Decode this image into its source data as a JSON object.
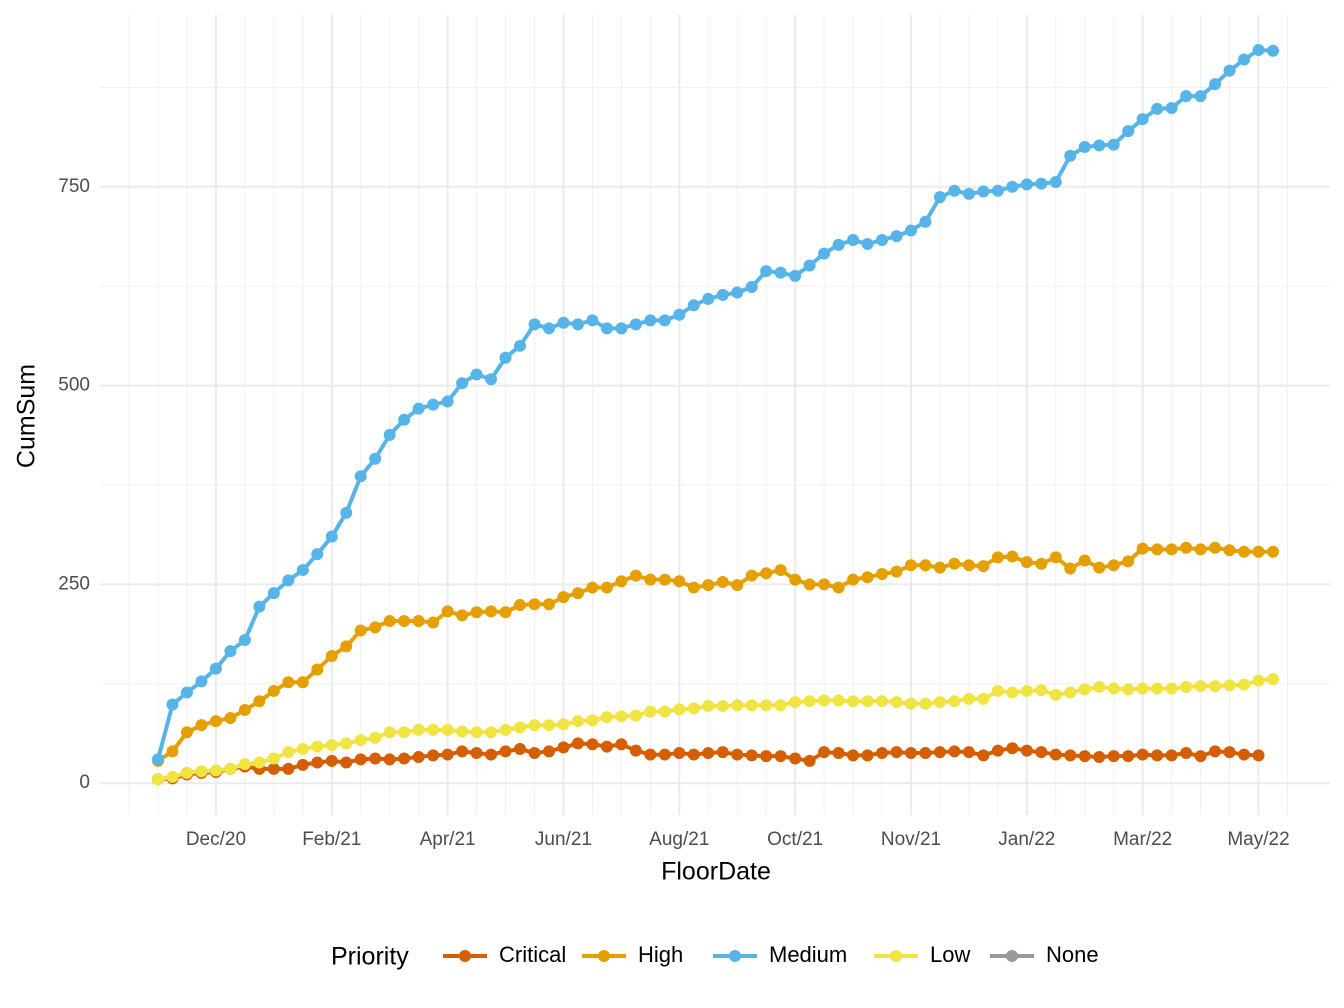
{
  "chart_data": {
    "type": "line",
    "x_label": "FloorDate",
    "y_label": "CumSum",
    "legend_title": "Priority",
    "legend_position": "bottom",
    "grid": true,
    "categories": [
      null,
      null,
      null,
      null,
      "Dec/20",
      null,
      null,
      null,
      null,
      null,
      null,
      null,
      "Feb/21",
      null,
      null,
      null,
      null,
      null,
      null,
      null,
      "Apr/21",
      null,
      null,
      null,
      null,
      null,
      null,
      null,
      "Jun/21",
      null,
      null,
      null,
      null,
      null,
      null,
      null,
      "Aug/21",
      null,
      null,
      null,
      null,
      null,
      null,
      null,
      "Oct/21",
      null,
      null,
      null,
      null,
      null,
      null,
      null,
      "Nov/21",
      null,
      null,
      null,
      null,
      null,
      null,
      null,
      "Jan/22",
      null,
      null,
      null,
      null,
      null,
      null,
      null,
      "Mar/22",
      null,
      null,
      null,
      null,
      null,
      null,
      null,
      "May/22",
      null
    ],
    "ylim": [
      -40,
      966
    ],
    "yticks": [
      0,
      250,
      500,
      750
    ],
    "series": [
      {
        "name": "Critical",
        "color": "#D55E00",
        "values": [
          5,
          6,
          11,
          13,
          14,
          18,
          21,
          18,
          18,
          18,
          23,
          26,
          28,
          26,
          30,
          31,
          30,
          31,
          33,
          35,
          36,
          40,
          38,
          36,
          40,
          43,
          38,
          40,
          45,
          50,
          49,
          46,
          49,
          41,
          36,
          36,
          38,
          36,
          38,
          39,
          36,
          35,
          34,
          34,
          31,
          28,
          39,
          38,
          35,
          35,
          38,
          39,
          38,
          38,
          39,
          40,
          39,
          35,
          41,
          44,
          41,
          39,
          36,
          35,
          34,
          33,
          34,
          34,
          36,
          35,
          35,
          38,
          34,
          40,
          39,
          36,
          35,
          null
        ]
      },
      {
        "name": "High",
        "color": "#E69F00",
        "values": [
          28,
          40,
          64,
          73,
          78,
          82,
          92,
          103,
          116,
          127,
          127,
          143,
          160,
          172,
          192,
          196,
          204,
          204,
          204,
          202,
          216,
          211,
          215,
          216,
          215,
          224,
          225,
          225,
          234,
          239,
          246,
          246,
          254,
          261,
          256,
          256,
          254,
          246,
          249,
          253,
          249,
          261,
          264,
          268,
          256,
          250,
          250,
          246,
          256,
          259,
          263,
          266,
          274,
          274,
          271,
          276,
          274,
          273,
          284,
          285,
          278,
          276,
          284,
          270,
          280,
          271,
          274,
          279,
          295,
          294,
          294,
          296,
          294,
          296,
          293,
          291,
          291,
          291
        ]
      },
      {
        "name": "Medium",
        "color": "#56B4E9",
        "values": [
          30,
          99,
          114,
          128,
          144,
          166,
          180,
          222,
          239,
          255,
          268,
          288,
          310,
          340,
          386,
          408,
          438,
          457,
          471,
          476,
          480,
          503,
          514,
          508,
          535,
          550,
          577,
          572,
          579,
          577,
          582,
          572,
          572,
          577,
          582,
          582,
          589,
          601,
          609,
          614,
          617,
          624,
          644,
          642,
          638,
          651,
          666,
          677,
          683,
          678,
          683,
          688,
          695,
          706,
          737,
          745,
          741,
          744,
          745,
          750,
          753,
          754,
          756,
          789,
          800,
          802,
          803,
          820,
          835,
          848,
          849,
          864,
          864,
          879,
          896,
          910,
          922,
          921
        ]
      },
      {
        "name": "Low",
        "color": "#F0E442",
        "values": [
          5,
          8,
          13,
          15,
          16,
          18,
          24,
          26,
          31,
          39,
          43,
          46,
          48,
          50,
          54,
          57,
          64,
          64,
          67,
          67,
          67,
          65,
          64,
          64,
          67,
          70,
          73,
          73,
          74,
          78,
          79,
          83,
          84,
          85,
          90,
          90,
          93,
          94,
          97,
          97,
          98,
          98,
          98,
          98,
          102,
          103,
          104,
          104,
          103,
          103,
          103,
          102,
          100,
          100,
          102,
          103,
          106,
          106,
          116,
          114,
          116,
          117,
          111,
          114,
          118,
          121,
          119,
          118,
          119,
          119,
          119,
          121,
          122,
          122,
          123,
          124,
          129,
          131
        ]
      },
      {
        "name": "None",
        "color": "#999999",
        "values": [
          null,
          null,
          null,
          null,
          null,
          null,
          null,
          null,
          null,
          null,
          null,
          null,
          null,
          null,
          null,
          null,
          null,
          null,
          null,
          null,
          null,
          null,
          null,
          null,
          null,
          null,
          null,
          null,
          null,
          null,
          null,
          null,
          null,
          null,
          null,
          null,
          null,
          null,
          null,
          null,
          null,
          null,
          null,
          null,
          null,
          null,
          null,
          null,
          null,
          null,
          null,
          null,
          null,
          null,
          null,
          null,
          null,
          null,
          null,
          null,
          null,
          null,
          null,
          null,
          null,
          null,
          null,
          null,
          null,
          null,
          null,
          null,
          null,
          null,
          null,
          null,
          null,
          null
        ]
      }
    ]
  }
}
